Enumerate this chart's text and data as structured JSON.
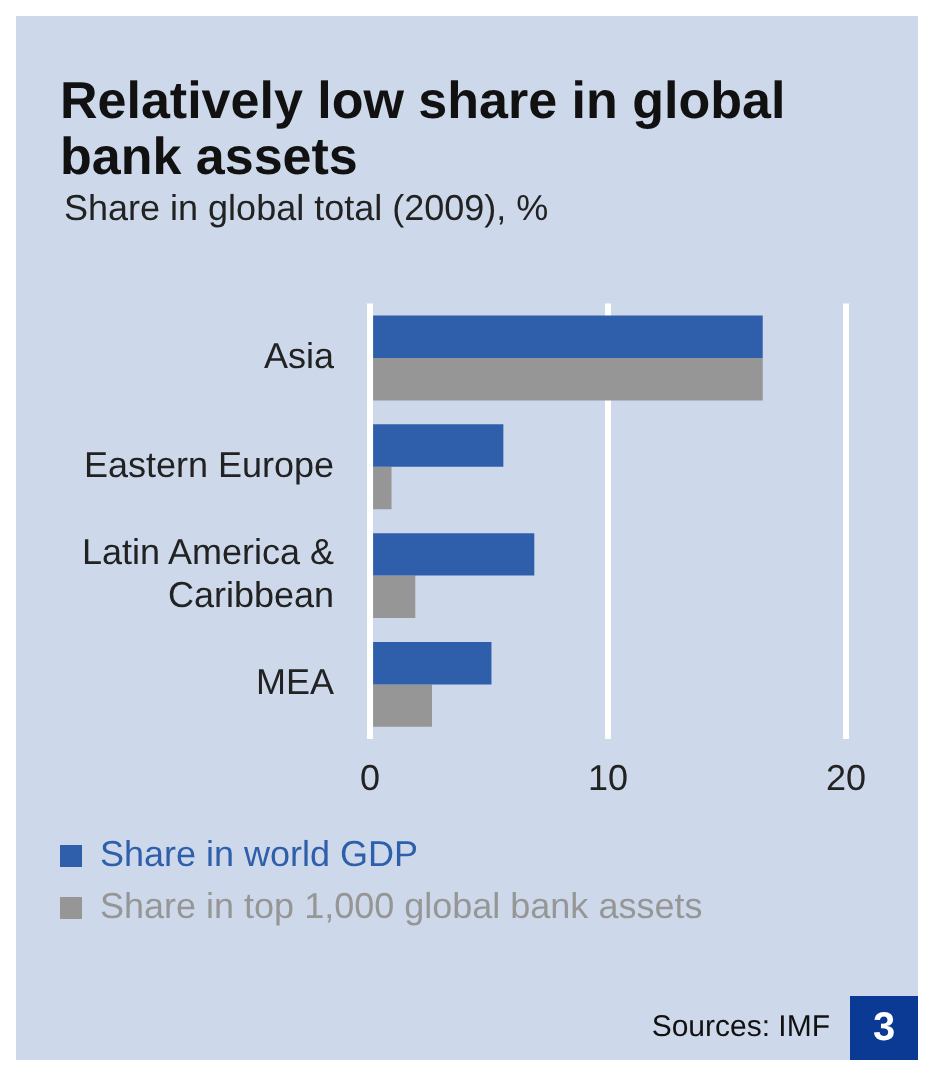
{
  "chart_data": {
    "type": "bar",
    "orientation": "horizontal",
    "title": "Relatively low share in global bank assets",
    "subtitle": "Share in global total (2009), %",
    "categories": [
      "Asia",
      "Eastern Europe",
      "Latin America & Caribbean",
      "MEA"
    ],
    "series": [
      {
        "name": "Share in world GDP",
        "color": "#2f5fab",
        "values": [
          16.5,
          5.6,
          6.9,
          5.1
        ]
      },
      {
        "name": "Share in top 1,000 global bank assets",
        "color": "#969696",
        "values": [
          16.5,
          0.9,
          1.9,
          2.6
        ]
      }
    ],
    "xlim": [
      0,
      20
    ],
    "xticks": [
      0,
      10,
      20
    ],
    "grid": "x",
    "legend": "bottom",
    "annotations": [
      "Sources: IMF",
      "3"
    ]
  }
}
